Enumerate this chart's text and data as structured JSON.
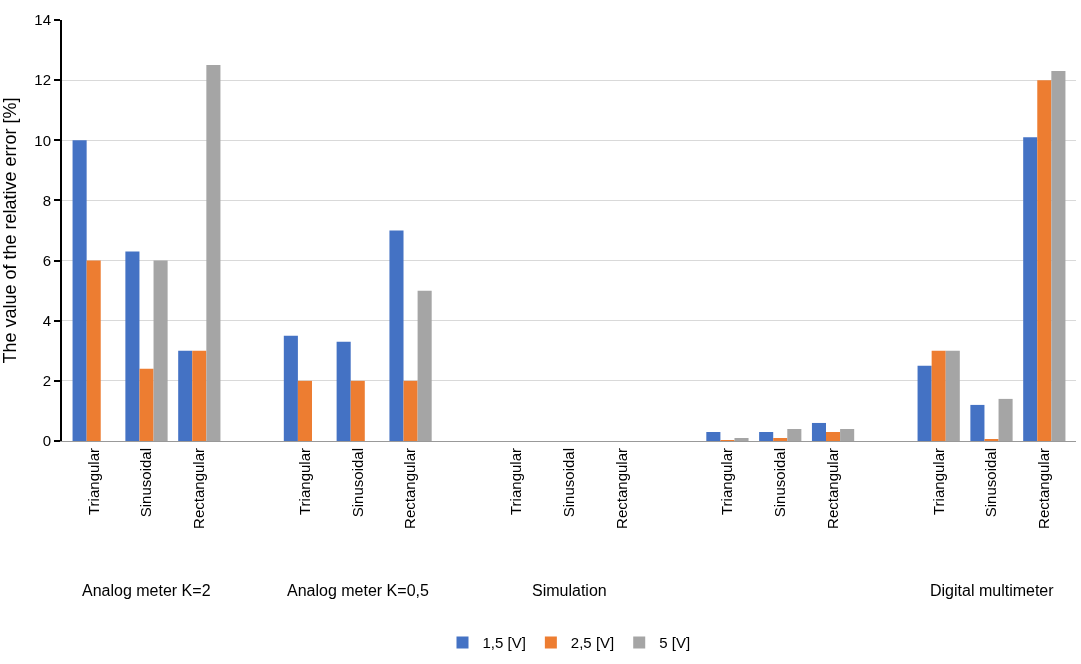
{
  "chart_data": {
    "type": "bar",
    "ylabel": "The value of the relative error [%]",
    "categories": [
      "Triangular",
      "Sinusoidal",
      "Rectangular",
      null,
      "Triangular",
      "Sinusoidal",
      "Rectangular",
      null,
      "Triangular",
      "Sinusoidal",
      "Rectangular",
      null,
      "Triangular",
      "Sinusoidal",
      "Rectangular",
      null,
      "Triangular",
      "Sinusoidal",
      "Rectangular"
    ],
    "series": [
      {
        "name": "1,5 [V]",
        "color": "#4472c4",
        "values": [
          10,
          6.3,
          3,
          null,
          3.5,
          3.3,
          7,
          null,
          0,
          0,
          0,
          null,
          0.3,
          0.3,
          0.6,
          null,
          2.5,
          1.2,
          10.1
        ]
      },
      {
        "name": "2,5 [V]",
        "color": "#ed7d31",
        "values": [
          6,
          2.4,
          3,
          null,
          2,
          2,
          2,
          null,
          0,
          0,
          0,
          null,
          0.02,
          0.1,
          0.3,
          null,
          3,
          0.05,
          12
        ]
      },
      {
        "name": "5 [V]",
        "color": "#a5a5a5",
        "values": [
          0,
          6,
          12.5,
          null,
          0,
          0,
          5,
          null,
          0,
          0,
          0,
          null,
          0.1,
          0.4,
          0.4,
          null,
          3,
          1.4,
          12.3
        ]
      }
    ],
    "annotations": [
      "Analog meter K=2",
      "Analog meter K=0,5",
      "Simulation",
      null,
      "Digital multimeter"
    ],
    "ylim": [
      0,
      14
    ],
    "yticks": [
      0,
      2,
      4,
      6,
      8,
      10,
      12,
      14
    ],
    "grid": "y",
    "legend": "bottom"
  }
}
